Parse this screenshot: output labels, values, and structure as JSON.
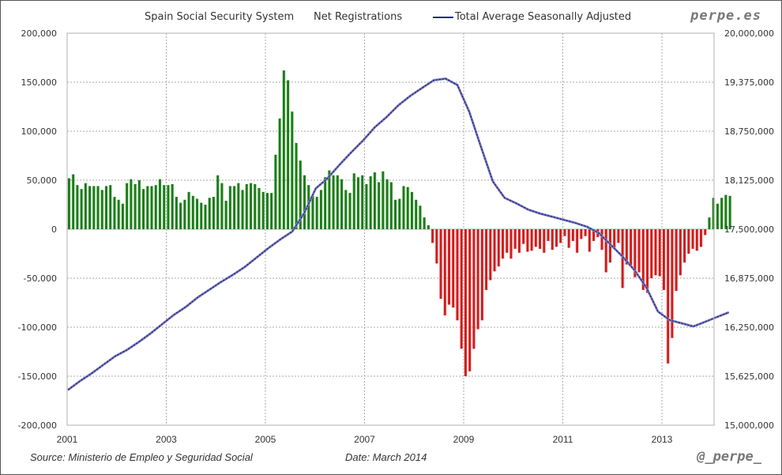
{
  "header": {
    "title_part1": "Spain Social Security System",
    "title_part2": "Net Registrations",
    "legend_line_label": "Total Average Seasonally Adjusted",
    "brand": "perpe.es"
  },
  "footer": {
    "source": "Source: Ministerio de Empleo y Seguridad Social",
    "date": "Date: March 2014",
    "handle": "@_perpe_"
  },
  "colors": {
    "positive_bar": "#1a7a1a",
    "negative_bar": "#d01a1a",
    "line": "#2b2b80",
    "grid": "#aaaaaa",
    "positive_fill": "#e6f5e0",
    "negative_fill": "#fbe3e3"
  },
  "chart_data": {
    "type": "bar",
    "title": "Spain Social Security System - Net Registrations",
    "xlabel": "",
    "ylabel_left": "Net Registrations",
    "ylabel_right": "Total Average Seasonally Adjusted",
    "x_start": "2001-01",
    "x_ticks": [
      "2001",
      "2003",
      "2005",
      "2007",
      "2009",
      "2011",
      "2013"
    ],
    "ylim_left": [
      -200000,
      200000
    ],
    "yticks_left": [
      "200,000",
      "150,000",
      "100,000",
      "50,000",
      "0",
      "-50,000",
      "-100,000",
      "-150,000",
      "-200,000"
    ],
    "ylim_right": [
      15000000,
      20000000
    ],
    "yticks_right": [
      "20,000,000",
      "19,375,000",
      "18,750,000",
      "18,125,000",
      "17,500,000",
      "16,875,000",
      "16,250,000",
      "15,625,000",
      "15,000,000"
    ],
    "grid": true,
    "legend_position": "top",
    "series": [
      {
        "name": "Net Registrations",
        "type": "bar",
        "frequency": "monthly",
        "values": [
          52000,
          56000,
          45000,
          41000,
          47000,
          44000,
          44000,
          44000,
          40000,
          44000,
          45000,
          33000,
          30000,
          26000,
          47000,
          51000,
          46000,
          50000,
          41000,
          44000,
          44000,
          45000,
          51000,
          45000,
          45000,
          46000,
          33000,
          27000,
          30000,
          38000,
          34000,
          31000,
          27000,
          25000,
          32000,
          33000,
          55000,
          47000,
          29000,
          44000,
          44000,
          47000,
          40000,
          46000,
          47000,
          46000,
          42000,
          38000,
          37000,
          37000,
          76000,
          113000,
          162000,
          152000,
          120000,
          88000,
          70000,
          55000,
          45000,
          34000,
          33000,
          40000,
          53000,
          60000,
          55000,
          55000,
          51000,
          40000,
          37000,
          57000,
          53000,
          55000,
          46000,
          54000,
          58000,
          48000,
          59000,
          51000,
          48000,
          30000,
          31000,
          44000,
          43000,
          38000,
          30000,
          24000,
          12000,
          4000,
          -14000,
          -35000,
          -71000,
          -88000,
          -77000,
          -80000,
          -93000,
          -122000,
          -150000,
          -145000,
          -122000,
          -102000,
          -93000,
          -62000,
          -52000,
          -43000,
          -38000,
          -30000,
          -24000,
          -30000,
          -20000,
          -24000,
          -15000,
          -23000,
          -22000,
          -18000,
          -20000,
          -24000,
          -12000,
          -21000,
          -18000,
          -14000,
          -7000,
          -19000,
          -12000,
          -24000,
          -10000,
          -7000,
          -23000,
          -12000,
          -8000,
          -21000,
          -44000,
          -34000,
          -20000,
          -14000,
          -60000,
          -36000,
          -38000,
          -49000,
          -44000,
          -62000,
          -65000,
          -50000,
          -47000,
          -48000,
          -62000,
          -137000,
          -111000,
          -63000,
          -47000,
          -34000,
          -25000,
          -20000,
          -22000,
          -18000,
          -6000,
          12000,
          32000,
          26000,
          32000,
          35000,
          34000
        ]
      },
      {
        "name": "Total Average Seasonally Adjusted",
        "type": "line",
        "frequency": "quarterly-sampled",
        "values": [
          15450000,
          15560000,
          15660000,
          15770000,
          15880000,
          15960000,
          16060000,
          16170000,
          16290000,
          16410000,
          16510000,
          16630000,
          16730000,
          16830000,
          16920000,
          17020000,
          17140000,
          17260000,
          17370000,
          17470000,
          17700000,
          18020000,
          18150000,
          18320000,
          18480000,
          18630000,
          18800000,
          18930000,
          19080000,
          19200000,
          19300000,
          19400000,
          19420000,
          19340000,
          19000000,
          18550000,
          18110000,
          17900000,
          17830000,
          17750000,
          17700000,
          17660000,
          17620000,
          17580000,
          17530000,
          17450000,
          17300000,
          17150000,
          16980000,
          16760000,
          16450000,
          16340000,
          16300000,
          16260000,
          16320000,
          16380000,
          16440000
        ]
      }
    ]
  }
}
